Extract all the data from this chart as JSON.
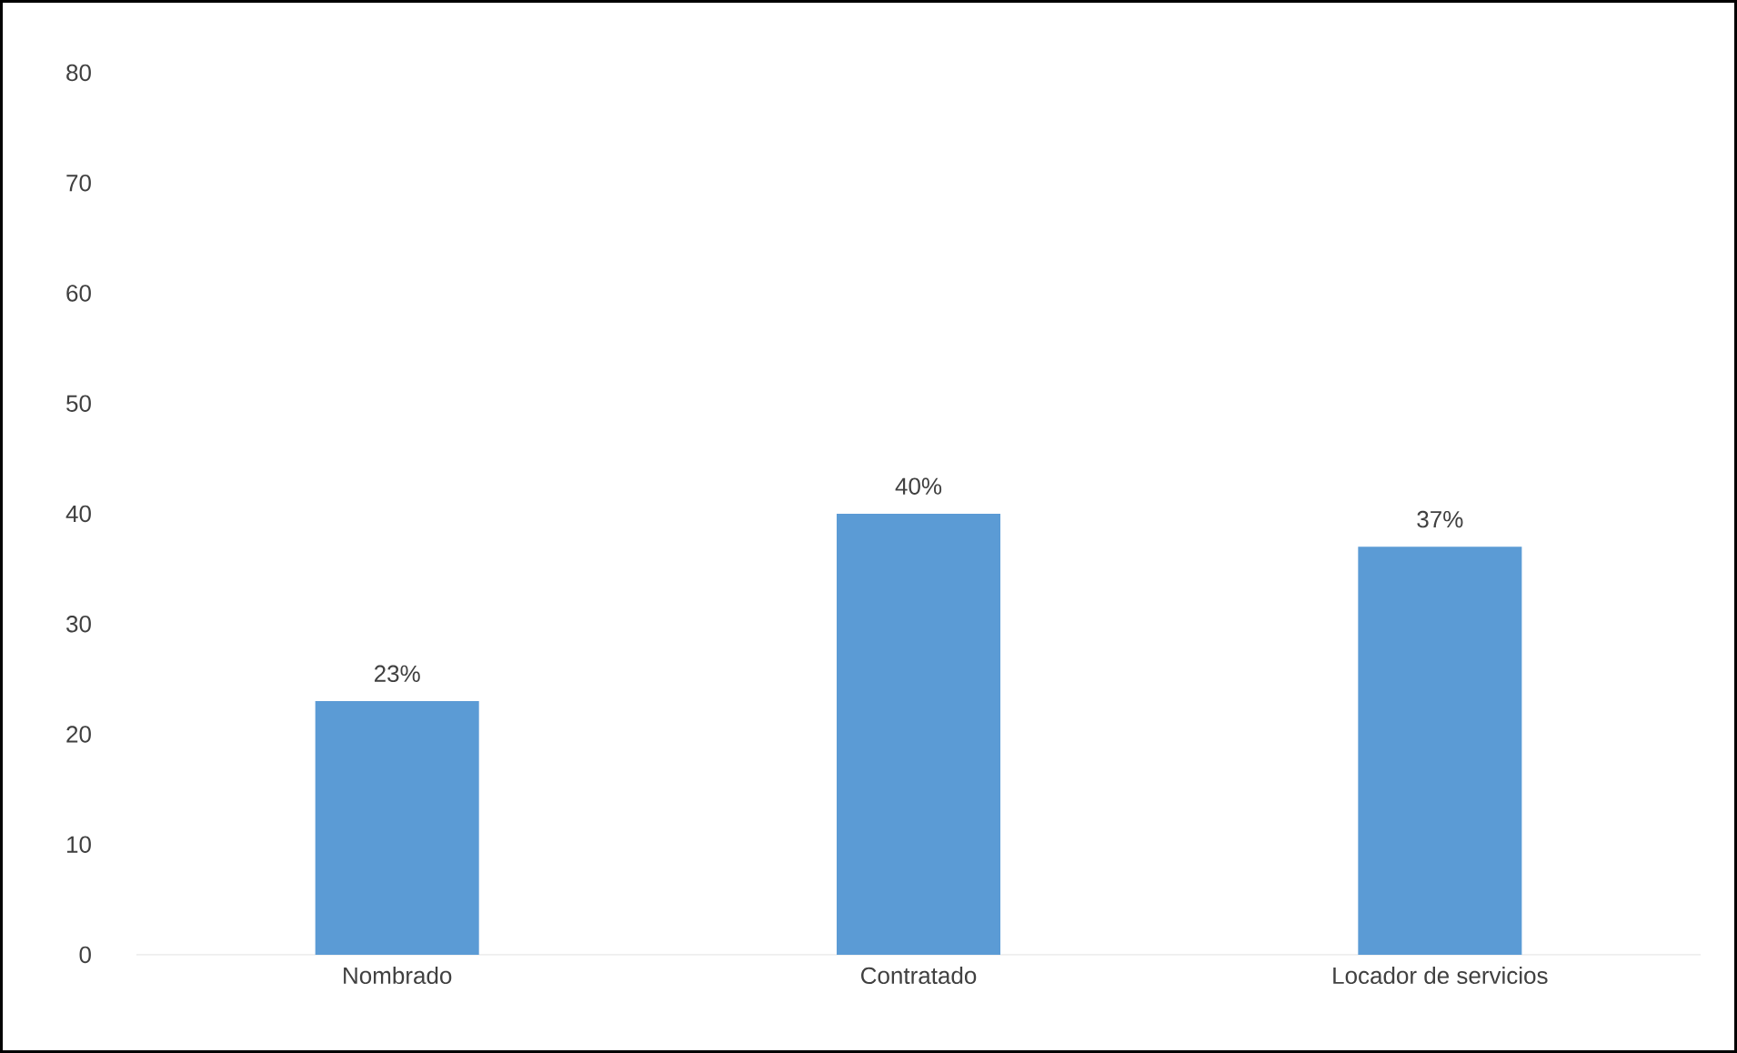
{
  "chart_data": {
    "type": "bar",
    "categories": [
      "Nombrado",
      "Contratado",
      "Locador de servicios"
    ],
    "values": [
      23,
      40,
      37
    ],
    "value_labels": [
      "23%",
      "40%",
      "37%"
    ],
    "color": "#5b9bd5",
    "ylim": [
      0,
      80
    ],
    "yticks": [
      0,
      10,
      20,
      30,
      40,
      50,
      60,
      70,
      80
    ],
    "grid": false
  }
}
